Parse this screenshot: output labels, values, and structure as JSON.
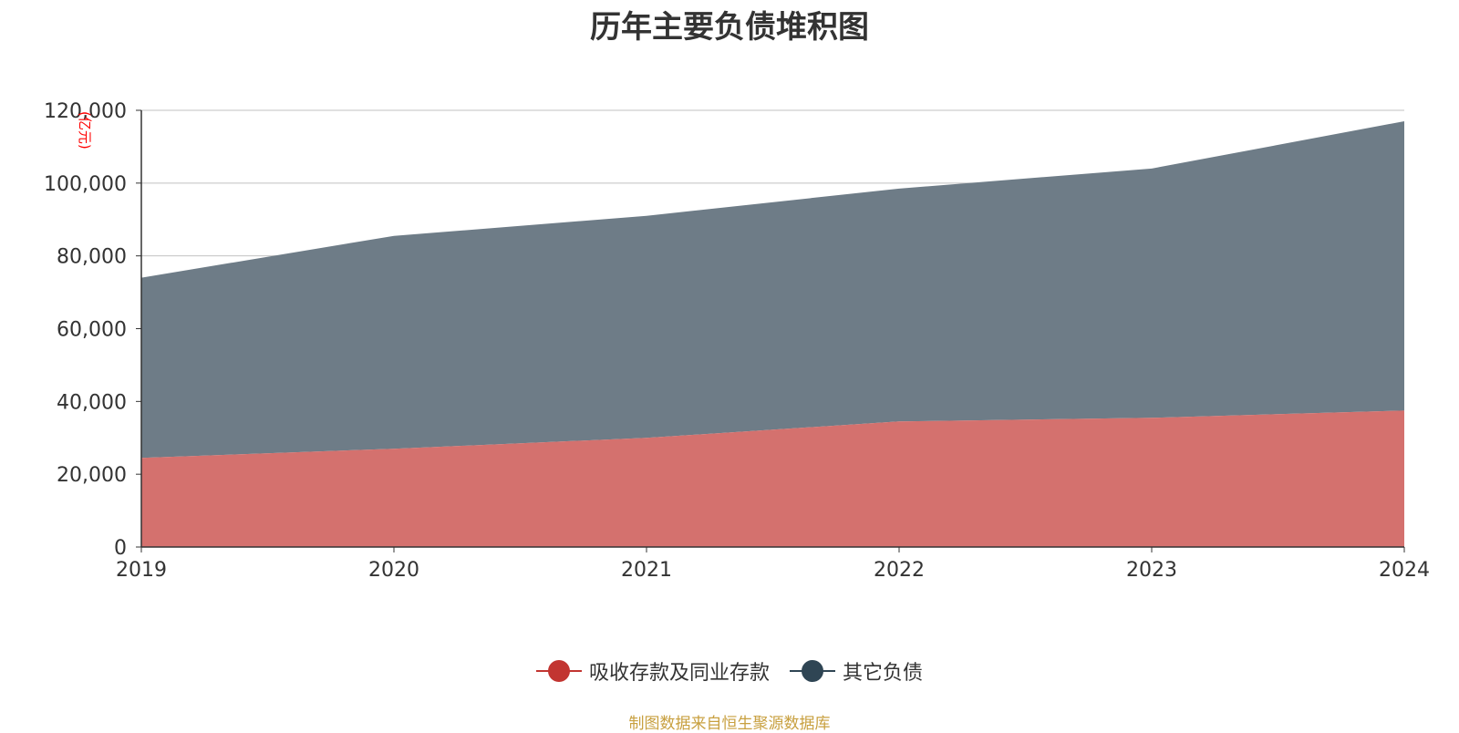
{
  "chart_data": {
    "type": "area",
    "stacked": true,
    "title": "历年主要负债堆积图",
    "ylabel": "(亿元)",
    "xlabel": "",
    "x": [
      "2019",
      "2020",
      "2021",
      "2022",
      "2023",
      "2024"
    ],
    "ylim": [
      0,
      120000
    ],
    "yticks": [
      0,
      20000,
      40000,
      60000,
      80000,
      100000,
      120000
    ],
    "ytick_labels": [
      "0",
      "20,000",
      "40,000",
      "60,000",
      "80,000",
      "100,000",
      "120,000"
    ],
    "grid": true,
    "legend_position": "bottom",
    "series": [
      {
        "name": "吸收存款及同业存款",
        "color": "#c23531",
        "area_color": "#d4716e",
        "values": [
          24500,
          27000,
          30000,
          34500,
          35500,
          37500
        ]
      },
      {
        "name": "其它负债",
        "color": "#2f4554",
        "area_color": "#6e7c87",
        "values": [
          49500,
          58500,
          61000,
          64000,
          68500,
          79500
        ]
      }
    ]
  },
  "source_note": "制图数据来自恒生聚源数据库"
}
